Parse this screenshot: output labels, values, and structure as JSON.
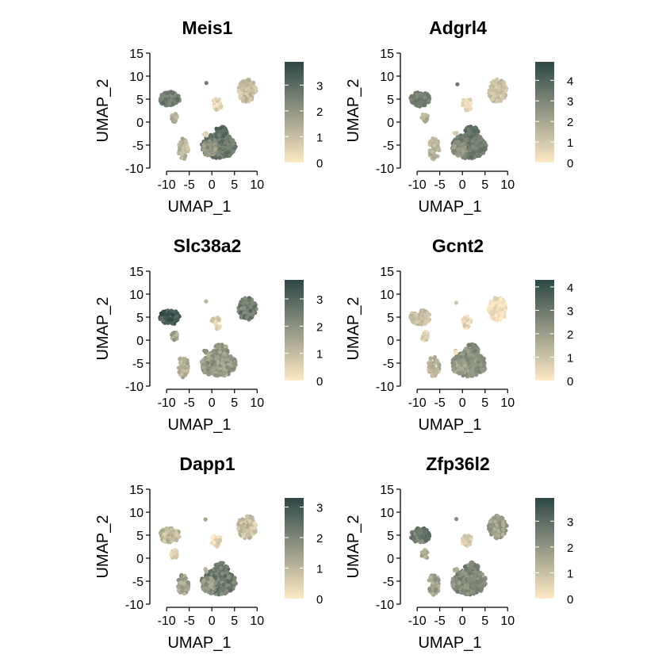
{
  "chart_data": [
    {
      "type": "scatter",
      "title": "Meis1",
      "xlabel": "UMAP_1",
      "ylabel": "UMAP_2",
      "xlim": [
        -13,
        11
      ],
      "ylim": [
        -10,
        15
      ],
      "xticks": [
        -10,
        -5,
        0,
        5,
        10
      ],
      "yticks": [
        -10,
        -5,
        0,
        5,
        10,
        15
      ],
      "colorbar": {
        "min": 0,
        "max": 3.9,
        "ticks": [
          0,
          1,
          2,
          3
        ]
      },
      "cluster_expression": {
        "A": 2.7,
        "B": 2.0,
        "C": 2.9,
        "D": 2.6,
        "E": 1.4,
        "F": 1.2,
        "G": 1.0,
        "H": 0.4,
        "I": 0.8,
        "J": 2.4
      }
    },
    {
      "type": "scatter",
      "title": "Adgrl4",
      "xlabel": "UMAP_1",
      "ylabel": "UMAP_2",
      "xlim": [
        -13,
        11
      ],
      "ylim": [
        -10,
        15
      ],
      "xticks": [
        -10,
        -5,
        0,
        5,
        10
      ],
      "yticks": [
        -10,
        -5,
        0,
        5,
        10,
        15
      ],
      "colorbar": {
        "min": 0,
        "max": 4.9,
        "ticks": [
          0,
          1,
          2,
          3,
          4
        ]
      },
      "cluster_expression": {
        "A": 3.3,
        "B": 2.5,
        "C": 3.5,
        "D": 3.1,
        "E": 1.7,
        "F": 1.6,
        "G": 1.2,
        "H": 0.5,
        "I": 1.0,
        "J": 2.9
      }
    },
    {
      "type": "scatter",
      "title": "Slc38a2",
      "xlabel": "UMAP_1",
      "ylabel": "UMAP_2",
      "xlim": [
        -13,
        11
      ],
      "ylim": [
        -10,
        15
      ],
      "xticks": [
        -10,
        -5,
        0,
        5,
        10
      ],
      "yticks": [
        -10,
        -5,
        0,
        5,
        10,
        15
      ],
      "colorbar": {
        "min": 0,
        "max": 3.7,
        "ticks": [
          0,
          1,
          2,
          3
        ]
      },
      "cluster_expression": {
        "A": 1.8,
        "B": 1.9,
        "C": 1.8,
        "D": 3.3,
        "E": 1.5,
        "F": 1.3,
        "G": 2.5,
        "H": 0.6,
        "I": 1.8,
        "J": 1.6
      }
    },
    {
      "type": "scatter",
      "title": "Gcnt2",
      "xlabel": "UMAP_1",
      "ylabel": "UMAP_2",
      "xlim": [
        -13,
        11
      ],
      "ylim": [
        -10,
        15
      ],
      "xticks": [
        -10,
        -5,
        0,
        5,
        10
      ],
      "yticks": [
        -10,
        -5,
        0,
        5,
        10,
        15
      ],
      "colorbar": {
        "min": 0,
        "max": 4.3,
        "ticks": [
          0,
          1,
          2,
          3,
          4
        ]
      },
      "cluster_expression": {
        "A": 2.3,
        "B": 1.9,
        "C": 2.4,
        "D": 1.2,
        "E": 0.6,
        "F": 1.4,
        "G": 0.2,
        "H": 0.4,
        "I": 0.6,
        "J": 1.4
      }
    },
    {
      "type": "scatter",
      "title": "Dapp1",
      "xlabel": "UMAP_1",
      "ylabel": "UMAP_2",
      "xlim": [
        -13,
        11
      ],
      "ylim": [
        -10,
        15
      ],
      "xticks": [
        -10,
        -5,
        0,
        5,
        10
      ],
      "yticks": [
        -10,
        -5,
        0,
        5,
        10,
        15
      ],
      "colorbar": {
        "min": 0,
        "max": 3.3,
        "ticks": [
          0,
          1,
          2,
          3
        ]
      },
      "cluster_expression": {
        "A": 2.2,
        "B": 1.6,
        "C": 2.3,
        "D": 1.0,
        "E": 0.5,
        "F": 1.4,
        "G": 0.8,
        "H": 0.4,
        "I": 0.9,
        "J": 1.8
      }
    },
    {
      "type": "scatter",
      "title": "Zfp36l2",
      "xlabel": "UMAP_1",
      "ylabel": "UMAP_2",
      "xlim": [
        -13,
        11
      ],
      "ylim": [
        -10,
        15
      ],
      "xticks": [
        -10,
        -5,
        0,
        5,
        10
      ],
      "yticks": [
        -10,
        -5,
        0,
        5,
        10,
        15
      ],
      "colorbar": {
        "min": 0,
        "max": 3.9,
        "ticks": [
          0,
          1,
          2,
          3
        ]
      },
      "cluster_expression": {
        "A": 2.3,
        "B": 2.2,
        "C": 2.4,
        "D": 2.6,
        "E": 1.6,
        "F": 1.7,
        "G": 1.8,
        "H": 0.6,
        "I": 1.4,
        "J": 2.2
      }
    }
  ],
  "clusters": [
    {
      "id": "A",
      "cx": 1.5,
      "cy": -5.2,
      "rx": 3.8,
      "ry": 2.7,
      "n": 320
    },
    {
      "id": "B",
      "cx": -0.6,
      "cy": -5.8,
      "rx": 1.6,
      "ry": 1.6,
      "n": 60
    },
    {
      "id": "C",
      "cx": 2.0,
      "cy": -2.2,
      "rx": 1.6,
      "ry": 1.3,
      "n": 50
    },
    {
      "id": "D",
      "cx": -9.3,
      "cy": 5.0,
      "rx": 2.2,
      "ry": 1.6,
      "n": 120
    },
    {
      "id": "E",
      "cx": -8.3,
      "cy": 0.9,
      "rx": 0.7,
      "ry": 1.0,
      "n": 18
    },
    {
      "id": "F",
      "cx": -6.3,
      "cy": -5.8,
      "rx": 1.2,
      "ry": 2.3,
      "n": 55
    },
    {
      "id": "G",
      "cx": 7.8,
      "cy": 6.8,
      "rx": 2.0,
      "ry": 2.5,
      "n": 120
    },
    {
      "id": "H",
      "cx": 1.0,
      "cy": 3.8,
      "rx": 1.1,
      "ry": 1.4,
      "n": 25
    },
    {
      "id": "I",
      "cx": -1.4,
      "cy": -2.6,
      "rx": 0.4,
      "ry": 0.4,
      "n": 4
    },
    {
      "id": "J",
      "cx": -1.3,
      "cy": 8.3,
      "rx": 0.25,
      "ry": 0.25,
      "n": 1
    }
  ],
  "colors": {
    "low": "#fde9c4",
    "high": "#2c4745"
  }
}
